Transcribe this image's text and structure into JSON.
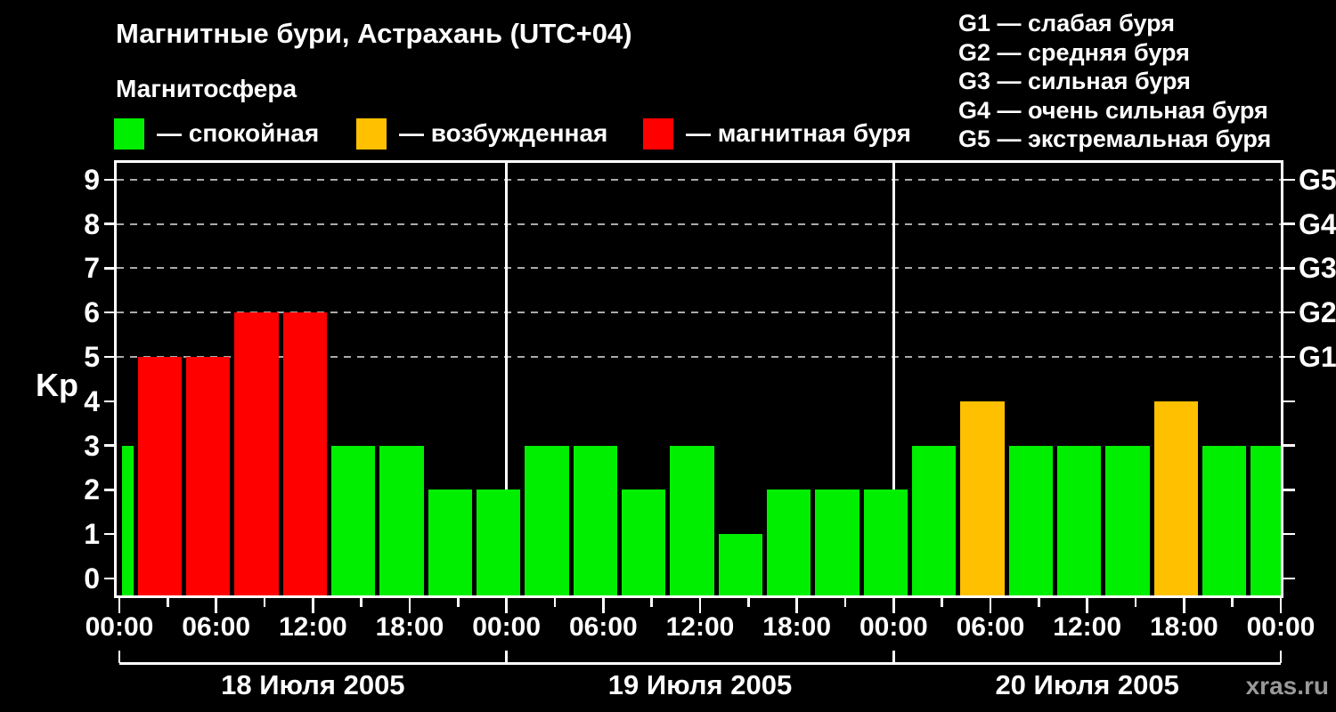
{
  "header": {
    "title": "Магнитные бури, Астрахань (UTC+04)",
    "subtitle": "Магнитосфера",
    "legend": [
      {
        "status": "quiet",
        "label": "— спокойная",
        "color": "#00EE00"
      },
      {
        "status": "excited",
        "label": "— возбужденная",
        "color": "#FFC000"
      },
      {
        "status": "storm",
        "label": "— магнитная буря",
        "color": "#FF0000"
      }
    ],
    "storm_scale": [
      "G1 — слабая буря",
      "G2 — средняя буря",
      "G3 — сильная буря",
      "G4 — очень сильная буря",
      "G5 — экстремальная буря"
    ]
  },
  "watermark": "xras.ru",
  "chart_data": {
    "type": "bar",
    "title": "Магнитные бури, Астрахань (UTC+04)",
    "ylabel": "Kp",
    "ylim": [
      0,
      9.4
    ],
    "grid": "dashed horizontal at storm levels only",
    "y_ticks": [
      0,
      1,
      2,
      3,
      4,
      5,
      6,
      7,
      8,
      9
    ],
    "grid_levels": [
      5,
      6,
      7,
      8,
      9
    ],
    "right_axis_labels": [
      "G1",
      "G2",
      "G3",
      "G4",
      "G5"
    ],
    "x_axis": {
      "hours_total": 72,
      "minor_tick_every_h": 3,
      "major_tick_every_h": 6,
      "tick_labels": [
        {
          "hour": 0,
          "label": "00:00"
        },
        {
          "hour": 6,
          "label": "06:00"
        },
        {
          "hour": 12,
          "label": "12:00"
        },
        {
          "hour": 18,
          "label": "18:00"
        },
        {
          "hour": 24,
          "label": "00:00"
        },
        {
          "hour": 30,
          "label": "06:00"
        },
        {
          "hour": 36,
          "label": "12:00"
        },
        {
          "hour": 42,
          "label": "18:00"
        },
        {
          "hour": 48,
          "label": "00:00"
        },
        {
          "hour": 54,
          "label": "06:00"
        },
        {
          "hour": 60,
          "label": "12:00"
        },
        {
          "hour": 66,
          "label": "18:00"
        },
        {
          "hour": 72,
          "label": "00:00"
        }
      ]
    },
    "days": [
      {
        "label": "18 Июля 2005",
        "start_hour": 0,
        "end_hour": 24
      },
      {
        "label": "19 Июля 2005",
        "start_hour": 24,
        "end_hour": 48
      },
      {
        "label": "20 Июля 2005",
        "start_hour": 48,
        "end_hour": 72
      }
    ],
    "bars": [
      {
        "start_h": 0,
        "end_h": 1,
        "kp": 3,
        "status": "quiet"
      },
      {
        "start_h": 1,
        "end_h": 4,
        "kp": 5,
        "status": "storm"
      },
      {
        "start_h": 4,
        "end_h": 7,
        "kp": 5,
        "status": "storm"
      },
      {
        "start_h": 7,
        "end_h": 10,
        "kp": 6,
        "status": "storm"
      },
      {
        "start_h": 10,
        "end_h": 13,
        "kp": 6,
        "status": "storm"
      },
      {
        "start_h": 13,
        "end_h": 16,
        "kp": 3,
        "status": "quiet"
      },
      {
        "start_h": 16,
        "end_h": 19,
        "kp": 3,
        "status": "quiet"
      },
      {
        "start_h": 19,
        "end_h": 22,
        "kp": 2,
        "status": "quiet"
      },
      {
        "start_h": 22,
        "end_h": 25,
        "kp": 2,
        "status": "quiet"
      },
      {
        "start_h": 25,
        "end_h": 28,
        "kp": 3,
        "status": "quiet"
      },
      {
        "start_h": 28,
        "end_h": 31,
        "kp": 3,
        "status": "quiet"
      },
      {
        "start_h": 31,
        "end_h": 34,
        "kp": 2,
        "status": "quiet"
      },
      {
        "start_h": 34,
        "end_h": 37,
        "kp": 3,
        "status": "quiet"
      },
      {
        "start_h": 37,
        "end_h": 40,
        "kp": 1,
        "status": "quiet"
      },
      {
        "start_h": 40,
        "end_h": 43,
        "kp": 2,
        "status": "quiet"
      },
      {
        "start_h": 43,
        "end_h": 46,
        "kp": 2,
        "status": "quiet"
      },
      {
        "start_h": 46,
        "end_h": 49,
        "kp": 2,
        "status": "quiet"
      },
      {
        "start_h": 49,
        "end_h": 52,
        "kp": 3,
        "status": "quiet"
      },
      {
        "start_h": 52,
        "end_h": 55,
        "kp": 4,
        "status": "excited"
      },
      {
        "start_h": 55,
        "end_h": 58,
        "kp": 3,
        "status": "quiet"
      },
      {
        "start_h": 58,
        "end_h": 61,
        "kp": 3,
        "status": "quiet"
      },
      {
        "start_h": 61,
        "end_h": 64,
        "kp": 3,
        "status": "quiet"
      },
      {
        "start_h": 64,
        "end_h": 67,
        "kp": 4,
        "status": "excited"
      },
      {
        "start_h": 67,
        "end_h": 70,
        "kp": 3,
        "status": "quiet"
      },
      {
        "start_h": 70,
        "end_h": 72,
        "kp": 3,
        "status": "quiet"
      }
    ],
    "colors": {
      "quiet": "#00EE00",
      "excited": "#FFC000",
      "storm": "#FF0000",
      "axis": "#FFFFFF",
      "grid": "#AAAAAA",
      "background": "#000000"
    }
  }
}
